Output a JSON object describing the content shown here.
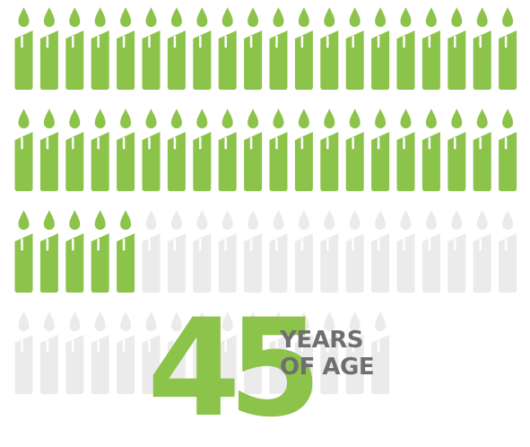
{
  "stat": {
    "value": "45",
    "label_line1": "YEARS",
    "label_line2": "OF AGE"
  },
  "candles": {
    "total": 75,
    "filled": 45,
    "columns": 20
  },
  "colors": {
    "filled": "#8cc34a",
    "empty": "#ebebeb",
    "number": "#8cc34a",
    "label": "#6f6f6f"
  }
}
